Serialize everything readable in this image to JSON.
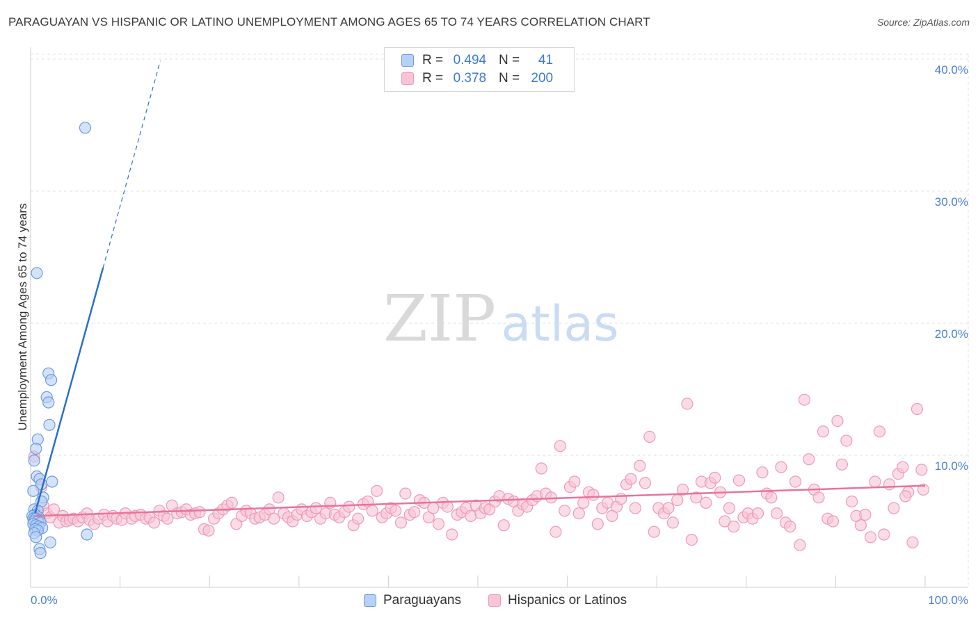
{
  "title": "PARAGUAYAN VS HISPANIC OR LATINO UNEMPLOYMENT AMONG AGES 65 TO 74 YEARS CORRELATION CHART",
  "source": "Source: ZipAtlas.com",
  "watermark": {
    "zip": "ZIP",
    "atlas": "atlas"
  },
  "colors": {
    "paraguayans_fill": "#b7d0f5",
    "paraguayans_stroke": "#6a9be0",
    "paraguayans_line": "#2a6fcc",
    "hispanics_fill": "#f7c5d5",
    "hispanics_stroke": "#ee9ab6",
    "hispanics_line": "#e8739b",
    "axis_label": "#4a7fd0",
    "grid": "#e2e2e2"
  },
  "legend": {
    "rows": [
      {
        "r_label": "R =",
        "r_value": "0.494",
        "n_label": "N =",
        "n_value": "41"
      },
      {
        "r_label": "R =",
        "r_value": "0.378",
        "n_label": "N =",
        "n_value": "200"
      }
    ]
  },
  "bottom_legend": {
    "paraguayans": "Paraguayans",
    "hispanics": "Hispanics or Latinos"
  },
  "chart_data": {
    "type": "scatter",
    "title": "PARAGUAYAN VS HISPANIC OR LATINO UNEMPLOYMENT AMONG AGES 65 TO 74 YEARS CORRELATION CHART",
    "xlabel": "",
    "ylabel": "Unemployment Among Ages 65 to 74 years",
    "xlim": [
      0,
      100
    ],
    "ylim": [
      0,
      42
    ],
    "x_tick_labels": [
      "0.0%",
      "100.0%"
    ],
    "y_ticks": [
      10,
      20,
      30,
      40
    ],
    "y_tick_labels": [
      "10.0%",
      "20.0%",
      "30.0%",
      "40.0%"
    ],
    "grid": true,
    "series": [
      {
        "name": "Paraguayans",
        "r": 0.494,
        "n": 41,
        "trend": {
          "x0": 0.5,
          "y0": 5.6,
          "x1": 8.1,
          "y1": 24.2,
          "dashed_to_x": 14.5
        },
        "points": [
          [
            6.1,
            34.8
          ],
          [
            0.7,
            23.8
          ],
          [
            2.0,
            16.2
          ],
          [
            2.3,
            15.7
          ],
          [
            1.8,
            14.4
          ],
          [
            2.0,
            14.0
          ],
          [
            2.1,
            12.3
          ],
          [
            0.8,
            11.2
          ],
          [
            0.6,
            10.5
          ],
          [
            0.4,
            9.6
          ],
          [
            0.7,
            8.4
          ],
          [
            1.0,
            8.2
          ],
          [
            2.4,
            8.0
          ],
          [
            1.2,
            7.8
          ],
          [
            0.3,
            7.3
          ],
          [
            1.4,
            6.8
          ],
          [
            1.2,
            6.5
          ],
          [
            0.4,
            5.9
          ],
          [
            0.8,
            5.8
          ],
          [
            0.5,
            5.5
          ],
          [
            0.2,
            5.4
          ],
          [
            0.5,
            5.3
          ],
          [
            0.9,
            5.3
          ],
          [
            0.3,
            5.2
          ],
          [
            0.6,
            5.2
          ],
          [
            1.0,
            5.1
          ],
          [
            0.4,
            5.0
          ],
          [
            0.8,
            5.0
          ],
          [
            1.1,
            4.9
          ],
          [
            0.3,
            4.8
          ],
          [
            0.6,
            4.7
          ],
          [
            0.9,
            4.6
          ],
          [
            1.3,
            4.5
          ],
          [
            0.5,
            4.4
          ],
          [
            0.8,
            4.3
          ],
          [
            0.4,
            4.1
          ],
          [
            6.3,
            4.0
          ],
          [
            0.6,
            3.8
          ],
          [
            2.2,
            3.4
          ],
          [
            1.0,
            2.9
          ],
          [
            1.1,
            2.6
          ]
        ]
      },
      {
        "name": "Hispanics or Latinos",
        "r": 0.378,
        "n": 200,
        "trend": {
          "x0": 0.5,
          "y0": 5.4,
          "x1": 100,
          "y1": 7.7
        },
        "points": [
          [
            0.4,
            9.9
          ],
          [
            1.2,
            7.6
          ],
          [
            1.4,
            6.2
          ],
          [
            1.8,
            5.6
          ],
          [
            2.2,
            5.3
          ],
          [
            2.6,
            5.9
          ],
          [
            3.2,
            4.9
          ],
          [
            3.6,
            5.4
          ],
          [
            4.0,
            5.0
          ],
          [
            4.4,
            5.1
          ],
          [
            4.8,
            5.2
          ],
          [
            5.3,
            5.0
          ],
          [
            5.8,
            5.3
          ],
          [
            6.3,
            5.6
          ],
          [
            6.6,
            5.1
          ],
          [
            7.1,
            4.8
          ],
          [
            7.6,
            5.2
          ],
          [
            8.2,
            5.5
          ],
          [
            8.6,
            5.0
          ],
          [
            9.2,
            5.4
          ],
          [
            9.6,
            5.2
          ],
          [
            10.2,
            5.1
          ],
          [
            10.6,
            5.6
          ],
          [
            11.3,
            5.2
          ],
          [
            11.7,
            5.4
          ],
          [
            12.3,
            5.5
          ],
          [
            12.9,
            5.2
          ],
          [
            13.3,
            5.3
          ],
          [
            13.8,
            4.9
          ],
          [
            14.4,
            5.8
          ],
          [
            14.9,
            5.4
          ],
          [
            15.3,
            5.2
          ],
          [
            15.8,
            6.2
          ],
          [
            16.4,
            5.6
          ],
          [
            16.9,
            5.7
          ],
          [
            17.4,
            5.9
          ],
          [
            17.9,
            5.5
          ],
          [
            18.4,
            5.6
          ],
          [
            18.9,
            5.7
          ],
          [
            19.4,
            4.4
          ],
          [
            19.9,
            4.3
          ],
          [
            20.5,
            5.2
          ],
          [
            21.0,
            5.6
          ],
          [
            21.5,
            5.9
          ],
          [
            22.0,
            6.2
          ],
          [
            22.5,
            6.4
          ],
          [
            23.0,
            4.8
          ],
          [
            23.6,
            5.4
          ],
          [
            24.1,
            5.8
          ],
          [
            24.6,
            5.6
          ],
          [
            25.1,
            5.2
          ],
          [
            25.6,
            5.3
          ],
          [
            26.2,
            5.5
          ],
          [
            26.7,
            5.9
          ],
          [
            27.2,
            5.2
          ],
          [
            27.7,
            6.8
          ],
          [
            28.3,
            5.6
          ],
          [
            28.8,
            5.3
          ],
          [
            29.3,
            5.0
          ],
          [
            29.8,
            5.5
          ],
          [
            30.3,
            5.9
          ],
          [
            30.9,
            5.4
          ],
          [
            31.4,
            5.7
          ],
          [
            31.9,
            6.0
          ],
          [
            32.4,
            5.2
          ],
          [
            33.0,
            5.6
          ],
          [
            33.5,
            6.4
          ],
          [
            34.0,
            5.5
          ],
          [
            34.5,
            5.3
          ],
          [
            35.1,
            5.7
          ],
          [
            35.6,
            6.1
          ],
          [
            36.1,
            4.7
          ],
          [
            36.6,
            5.2
          ],
          [
            37.2,
            6.3
          ],
          [
            37.7,
            6.5
          ],
          [
            38.2,
            5.8
          ],
          [
            38.7,
            7.3
          ],
          [
            39.3,
            5.3
          ],
          [
            39.8,
            5.6
          ],
          [
            40.3,
            6.0
          ],
          [
            40.8,
            5.8
          ],
          [
            41.4,
            4.9
          ],
          [
            41.9,
            7.1
          ],
          [
            42.4,
            5.5
          ],
          [
            42.9,
            5.7
          ],
          [
            43.5,
            6.6
          ],
          [
            44.0,
            6.4
          ],
          [
            44.5,
            5.3
          ],
          [
            45.0,
            6.0
          ],
          [
            45.6,
            4.8
          ],
          [
            46.1,
            6.4
          ],
          [
            46.6,
            6.1
          ],
          [
            47.1,
            4.0
          ],
          [
            47.7,
            5.5
          ],
          [
            48.2,
            5.7
          ],
          [
            48.7,
            6.0
          ],
          [
            49.2,
            5.4
          ],
          [
            49.8,
            6.2
          ],
          [
            50.3,
            5.6
          ],
          [
            50.8,
            6.0
          ],
          [
            51.3,
            5.9
          ],
          [
            51.9,
            6.5
          ],
          [
            52.4,
            6.9
          ],
          [
            52.9,
            4.7
          ],
          [
            53.4,
            6.7
          ],
          [
            54.0,
            6.5
          ],
          [
            54.5,
            5.8
          ],
          [
            55.0,
            6.3
          ],
          [
            55.5,
            6.1
          ],
          [
            56.1,
            6.6
          ],
          [
            56.6,
            6.9
          ],
          [
            57.1,
            9.0
          ],
          [
            57.6,
            7.1
          ],
          [
            58.2,
            6.8
          ],
          [
            58.7,
            4.2
          ],
          [
            59.2,
            10.7
          ],
          [
            59.7,
            5.8
          ],
          [
            60.3,
            7.6
          ],
          [
            60.8,
            8.0
          ],
          [
            61.3,
            5.6
          ],
          [
            61.8,
            6.4
          ],
          [
            62.4,
            7.2
          ],
          [
            62.9,
            7.0
          ],
          [
            63.4,
            4.8
          ],
          [
            63.9,
            6.0
          ],
          [
            64.5,
            6.4
          ],
          [
            65.0,
            5.4
          ],
          [
            65.5,
            6.1
          ],
          [
            66.0,
            6.7
          ],
          [
            66.6,
            7.8
          ],
          [
            67.1,
            8.2
          ],
          [
            67.6,
            6.0
          ],
          [
            68.1,
            9.2
          ],
          [
            68.7,
            7.9
          ],
          [
            69.2,
            11.4
          ],
          [
            69.7,
            4.2
          ],
          [
            70.2,
            6.0
          ],
          [
            70.8,
            5.6
          ],
          [
            71.3,
            6.0
          ],
          [
            71.8,
            4.9
          ],
          [
            72.3,
            6.6
          ],
          [
            72.9,
            7.4
          ],
          [
            73.4,
            13.9
          ],
          [
            73.9,
            3.6
          ],
          [
            74.4,
            6.8
          ],
          [
            75.0,
            8.0
          ],
          [
            75.5,
            6.4
          ],
          [
            76.0,
            7.9
          ],
          [
            76.5,
            8.3
          ],
          [
            77.1,
            7.2
          ],
          [
            77.6,
            5.0
          ],
          [
            78.1,
            6.0
          ],
          [
            78.6,
            4.6
          ],
          [
            79.2,
            8.1
          ],
          [
            79.7,
            5.3
          ],
          [
            80.2,
            5.6
          ],
          [
            80.7,
            5.2
          ],
          [
            81.3,
            5.6
          ],
          [
            81.8,
            8.7
          ],
          [
            82.3,
            7.1
          ],
          [
            82.8,
            6.8
          ],
          [
            83.4,
            5.6
          ],
          [
            83.9,
            9.1
          ],
          [
            84.4,
            4.9
          ],
          [
            84.9,
            4.6
          ],
          [
            85.5,
            8.0
          ],
          [
            86.0,
            3.2
          ],
          [
            86.5,
            14.2
          ],
          [
            87.0,
            9.7
          ],
          [
            87.6,
            7.4
          ],
          [
            88.1,
            6.8
          ],
          [
            88.6,
            11.8
          ],
          [
            89.1,
            5.2
          ],
          [
            89.7,
            5.0
          ],
          [
            90.2,
            12.6
          ],
          [
            90.7,
            9.3
          ],
          [
            91.2,
            11.1
          ],
          [
            91.8,
            6.5
          ],
          [
            92.3,
            5.4
          ],
          [
            92.8,
            4.7
          ],
          [
            93.3,
            5.5
          ],
          [
            93.9,
            3.8
          ],
          [
            94.4,
            8.0
          ],
          [
            94.9,
            11.8
          ],
          [
            95.4,
            4.0
          ],
          [
            96.0,
            7.8
          ],
          [
            96.5,
            6.0
          ],
          [
            97.0,
            8.6
          ],
          [
            97.5,
            9.1
          ],
          [
            98.1,
            7.2
          ],
          [
            98.6,
            3.4
          ],
          [
            99.1,
            13.5
          ],
          [
            99.6,
            8.9
          ],
          [
            99.8,
            7.4
          ],
          [
            97.8,
            6.9
          ]
        ]
      }
    ]
  }
}
